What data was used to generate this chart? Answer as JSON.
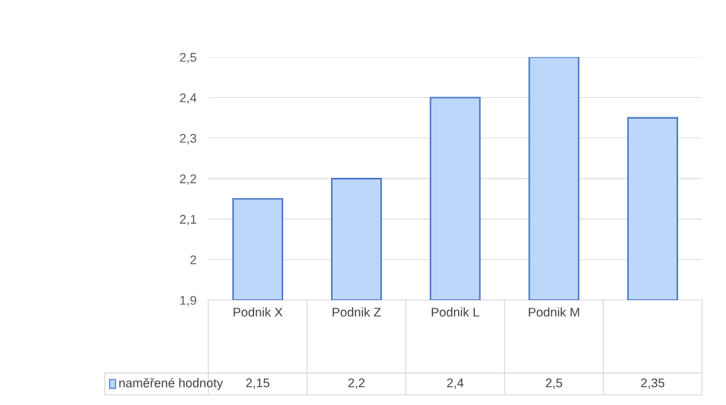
{
  "chart_data": {
    "type": "bar",
    "categories": [
      "Podnik X",
      "Podnik Z",
      "Podnik L",
      "Podnik M",
      null
    ],
    "series": [
      {
        "name": "naměřené hodnoty",
        "color": "#bdd7fb",
        "values": [
          2.15,
          2.2,
          2.4,
          2.5,
          2.35
        ],
        "value_labels": [
          "2,15",
          "2,2",
          "2,4",
          "2,5",
          "2,35"
        ]
      }
    ],
    "ylim": [
      1.9,
      2.5
    ],
    "yticks": [
      {
        "value": 1.9,
        "label": "1,9"
      },
      {
        "value": 2.0,
        "label": "2"
      },
      {
        "value": 2.1,
        "label": "2,1"
      },
      {
        "value": 2.2,
        "label": "2,2"
      },
      {
        "value": 2.3,
        "label": "2,3"
      },
      {
        "value": 2.4,
        "label": "2,4"
      },
      {
        "value": 2.5,
        "label": "2,5"
      }
    ],
    "grid": "y",
    "legend": "bottom"
  }
}
